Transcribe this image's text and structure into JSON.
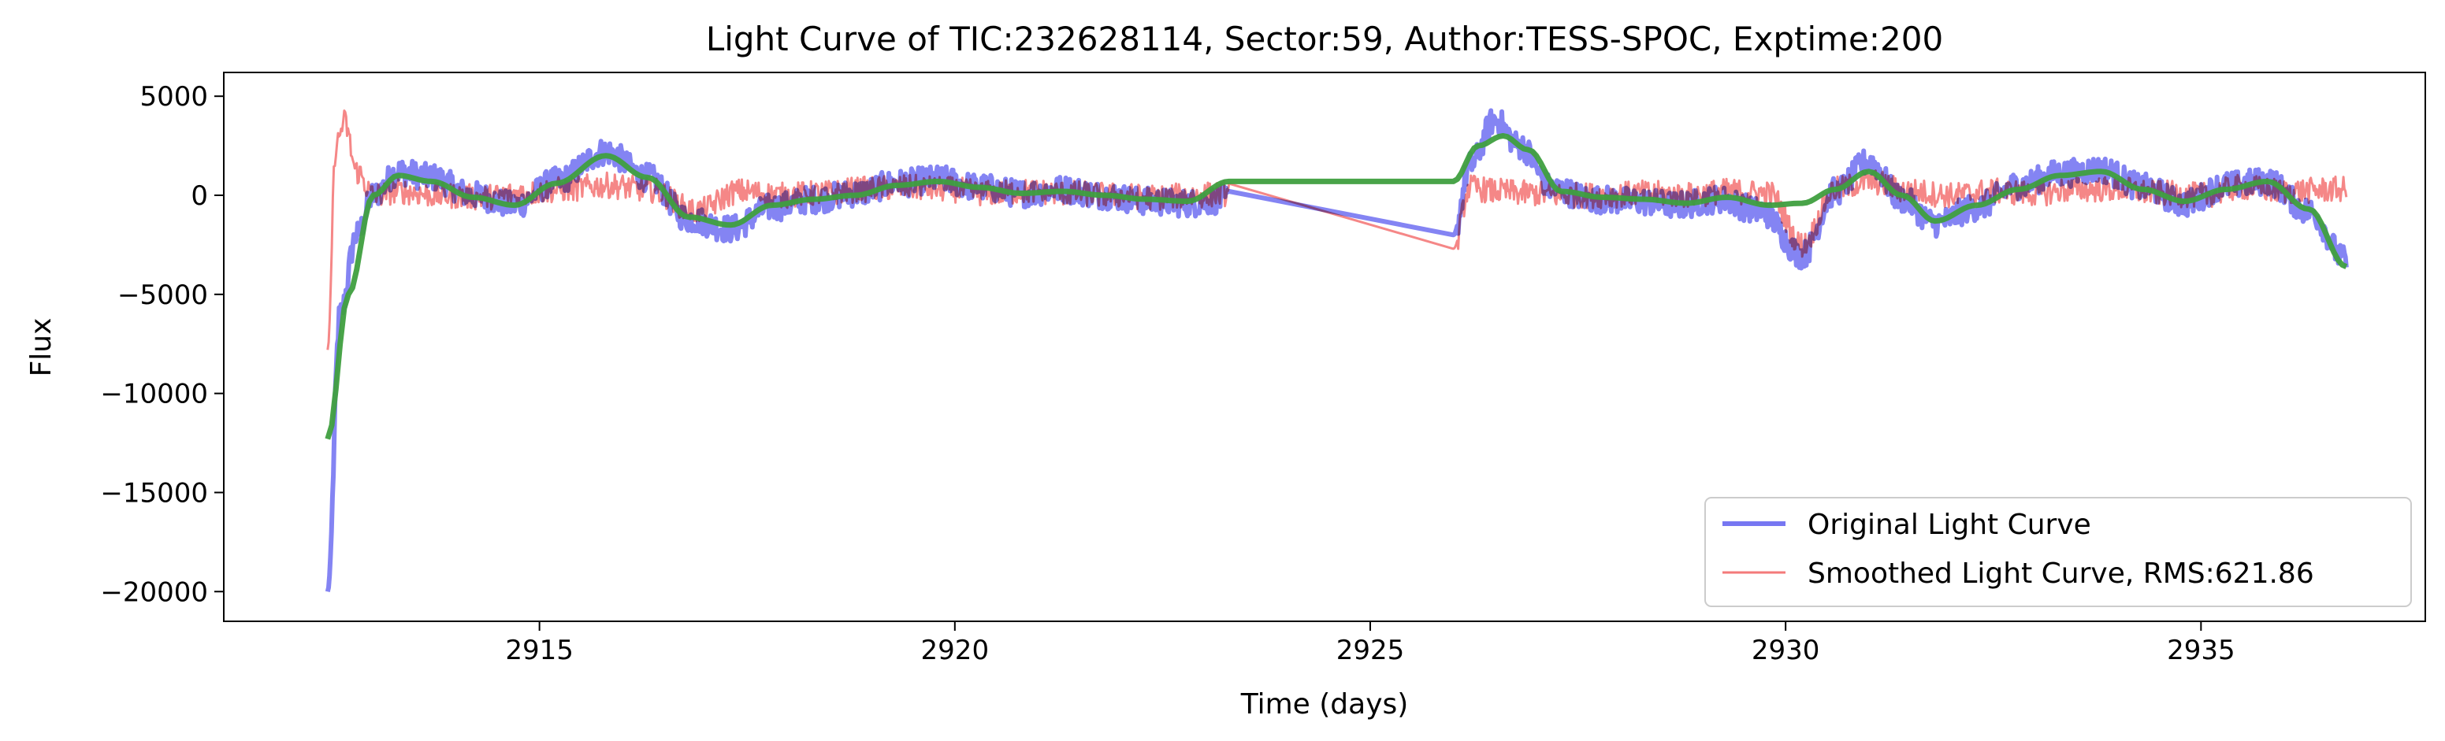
{
  "chart_data": {
    "type": "line",
    "title": "Light Curve of TIC:232628114, Sector:59, Author:TESS-SPOC, Exptime:200",
    "xlabel": "Time (days)",
    "ylabel": "Flux",
    "xlim": [
      2911.2,
      2937.7
    ],
    "ylim": [
      -21500,
      6200
    ],
    "xticks": [
      2915,
      2920,
      2925,
      2930,
      2935
    ],
    "xtick_labels": [
      "2915",
      "2920",
      "2925",
      "2930",
      "2935"
    ],
    "yticks": [
      -20000,
      -15000,
      -10000,
      -5000,
      0,
      5000
    ],
    "ytick_labels": [
      "−20000",
      "−15000",
      "−10000",
      "−5000",
      "0",
      "5000"
    ],
    "grid": false,
    "legend_position": "lower-right",
    "series": [
      {
        "name": "Original Light Curve",
        "color": "#7777f2",
        "noise_amplitude": 700,
        "segments": [
          {
            "x": [
              2912.45,
              2912.6,
              2912.8,
              2913.0,
              2913.3,
              2913.7,
              2914.2,
              2914.7,
              2915.2,
              2915.8,
              2916.3,
              2916.8,
              2917.3,
              2917.8,
              2918.3,
              2918.8,
              2919.3,
              2919.8,
              2920.3,
              2920.8,
              2921.3,
              2921.8,
              2922.3,
              2922.8,
              2923.3
            ],
            "y": [
              -20000,
              -6000,
              -2000,
              0,
              1200,
              900,
              0,
              -500,
              700,
              2200,
              900,
              -1200,
              -1700,
              -600,
              -200,
              100,
              600,
              800,
              400,
              100,
              300,
              0,
              -300,
              -400,
              -200
            ]
          },
          {
            "x": [
              2926.0,
              2926.2,
              2926.5,
              2926.8,
              2927.2,
              2927.7,
              2928.2,
              2928.7,
              2929.2,
              2929.7,
              2930.2,
              2930.6,
              2931.0,
              2931.4,
              2931.8,
              2932.3,
              2932.8,
              2933.3,
              2933.8,
              2934.3,
              2934.8,
              2935.3,
              2935.8,
              2936.3,
              2936.75
            ],
            "y": [
              -2000,
              1500,
              3800,
              2500,
              300,
              -200,
              -300,
              -500,
              -200,
              -800,
              -3000,
              200,
              1700,
              -200,
              -1400,
              -600,
              500,
              1100,
              1300,
              400,
              -400,
              500,
              700,
              -800,
              -3300
            ]
          }
        ]
      },
      {
        "name": "Smoothed Light Curve, RMS:621.86",
        "color": "#f47a7a",
        "noise_amplitude": 650,
        "segments": [
          {
            "x": [
              2912.45,
              2912.55,
              2912.65,
              2912.8,
              2913.0,
              2913.3,
              2913.8,
              2914.3,
              2914.8,
              2915.3,
              2915.8,
              2916.3,
              2916.9,
              2917.4,
              2917.9,
              2918.4,
              2918.9,
              2919.4,
              2919.9,
              2920.4,
              2920.9,
              2921.4,
              2921.9,
              2922.4,
              2922.9,
              2923.3
            ],
            "y": [
              -7800,
              2500,
              3700,
              1200,
              0,
              200,
              0,
              -100,
              100,
              300,
              500,
              300,
              -800,
              200,
              0,
              100,
              300,
              400,
              300,
              100,
              200,
              100,
              0,
              -100,
              0,
              100
            ]
          },
          {
            "x": [
              2926.0,
              2926.2,
              2926.5,
              2926.9,
              2927.3,
              2927.8,
              2928.3,
              2928.8,
              2929.3,
              2929.8,
              2930.2,
              2930.6,
              2931.0,
              2931.5,
              2932.0,
              2932.5,
              2933.0,
              2933.5,
              2934.0,
              2934.5,
              2935.0,
              2935.5,
              2936.0,
              2936.75
            ],
            "y": [
              -2700,
              400,
              200,
              100,
              0,
              0,
              100,
              0,
              200,
              100,
              -2500,
              300,
              700,
              200,
              0,
              200,
              100,
              300,
              300,
              100,
              0,
              400,
              200,
              300
            ]
          }
        ]
      },
      {
        "name": "",
        "color": "#3f9f3f",
        "noise_amplitude": 0,
        "segments": [
          {
            "x": [
              2912.45,
              2912.7,
              2913.0,
              2913.3,
              2913.7,
              2914.2,
              2914.7,
              2915.2,
              2915.8,
              2916.3,
              2916.8,
              2917.3,
              2917.8,
              2918.3,
              2918.8,
              2919.3,
              2919.8,
              2920.3,
              2920.8,
              2921.3,
              2921.8,
              2922.3,
              2922.8,
              2923.3,
              2926.0,
              2926.3,
              2926.6,
              2926.9,
              2927.3,
              2927.8,
              2928.3,
              2928.8,
              2929.3,
              2929.8,
              2930.2,
              2930.6,
              2931.0,
              2931.4,
              2931.8,
              2932.3,
              2932.8,
              2933.3,
              2933.8,
              2934.3,
              2934.8,
              2935.3,
              2935.8,
              2936.3,
              2936.75
            ],
            "y": [
              -12300,
              -5000,
              0,
              1000,
              700,
              -100,
              -500,
              600,
              2000,
              900,
              -1100,
              -1500,
              -500,
              -200,
              0,
              500,
              700,
              400,
              100,
              200,
              0,
              -200,
              -300,
              700,
              700,
              2500,
              3000,
              2300,
              200,
              -100,
              -200,
              -400,
              -100,
              -500,
              -400,
              300,
              1200,
              0,
              -1300,
              -500,
              300,
              1000,
              1200,
              300,
              -300,
              300,
              700,
              -700,
              -3600
            ]
          }
        ]
      }
    ]
  }
}
